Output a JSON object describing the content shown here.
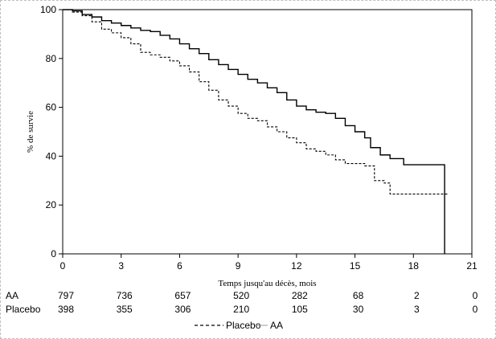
{
  "chart_data": {
    "type": "line",
    "title": "",
    "xlabel": "Temps jusqu'au décès, mois",
    "ylabel": "% de survie",
    "xlim": [
      0,
      21
    ],
    "ylim": [
      0,
      100
    ],
    "x_ticks": [
      0,
      3,
      6,
      9,
      12,
      15,
      18,
      21
    ],
    "y_ticks": [
      0,
      20,
      40,
      60,
      80,
      100
    ],
    "grid": false,
    "legend_position": "bottom",
    "series": [
      {
        "name": "AA",
        "style": "solid",
        "color": "#000000",
        "step": true,
        "points": [
          [
            0,
            100
          ],
          [
            0.5,
            99.5
          ],
          [
            1,
            98
          ],
          [
            1.5,
            97
          ],
          [
            2,
            95.5
          ],
          [
            2.5,
            94.5
          ],
          [
            3,
            93.5
          ],
          [
            3.5,
            92.5
          ],
          [
            4,
            91.5
          ],
          [
            4.5,
            91
          ],
          [
            5,
            89.5
          ],
          [
            5.5,
            88
          ],
          [
            6,
            86
          ],
          [
            6.5,
            84
          ],
          [
            7,
            82
          ],
          [
            7.5,
            79.5
          ],
          [
            8,
            77.5
          ],
          [
            8.5,
            75.5
          ],
          [
            9,
            73.5
          ],
          [
            9.5,
            71.5
          ],
          [
            10,
            70
          ],
          [
            10.5,
            68
          ],
          [
            11,
            66
          ],
          [
            11.5,
            63
          ],
          [
            12,
            60.5
          ],
          [
            12.5,
            59
          ],
          [
            13,
            58
          ],
          [
            13.5,
            57.5
          ],
          [
            14,
            55.5
          ],
          [
            14.5,
            52.5
          ],
          [
            15,
            50
          ],
          [
            15.5,
            47.5
          ],
          [
            15.8,
            43.5
          ],
          [
            16.3,
            40.5
          ],
          [
            16.8,
            39
          ],
          [
            17.5,
            36.5
          ],
          [
            19.6,
            36.5
          ],
          [
            19.6,
            0
          ]
        ]
      },
      {
        "name": "Placebo",
        "style": "dashed",
        "color": "#000000",
        "step": true,
        "points": [
          [
            0,
            100
          ],
          [
            0.5,
            99
          ],
          [
            1,
            97.5
          ],
          [
            1.5,
            95
          ],
          [
            2,
            92
          ],
          [
            2.5,
            90.5
          ],
          [
            3,
            88.5
          ],
          [
            3.5,
            86
          ],
          [
            4,
            82.5
          ],
          [
            4.5,
            81.5
          ],
          [
            5,
            80.5
          ],
          [
            5.5,
            79
          ],
          [
            6,
            77
          ],
          [
            6.5,
            74.5
          ],
          [
            7,
            70.5
          ],
          [
            7.5,
            67
          ],
          [
            8,
            63
          ],
          [
            8.5,
            60.5
          ],
          [
            9,
            57.5
          ],
          [
            9.5,
            55.5
          ],
          [
            10,
            54.5
          ],
          [
            10.5,
            52
          ],
          [
            11,
            50
          ],
          [
            11.5,
            47.5
          ],
          [
            12,
            45.5
          ],
          [
            12.5,
            43
          ],
          [
            13,
            42
          ],
          [
            13.5,
            40.5
          ],
          [
            14,
            38.5
          ],
          [
            14.5,
            37
          ],
          [
            15,
            37
          ],
          [
            15.5,
            36
          ],
          [
            16,
            30
          ],
          [
            16.5,
            29
          ],
          [
            16.8,
            24.5
          ],
          [
            19.8,
            24.5
          ]
        ]
      }
    ],
    "risk_table": {
      "times": [
        0,
        3,
        6,
        9,
        12,
        15,
        18,
        21
      ],
      "rows": [
        {
          "label": "AA",
          "counts": [
            797,
            736,
            657,
            520,
            282,
            68,
            2,
            0
          ]
        },
        {
          "label": "Placebo",
          "counts": [
            398,
            355,
            306,
            210,
            105,
            30,
            3,
            0
          ]
        }
      ]
    },
    "legend": [
      {
        "label": "Placebo",
        "style": "dashed"
      },
      {
        "label": "AA",
        "style": "solid"
      }
    ]
  }
}
